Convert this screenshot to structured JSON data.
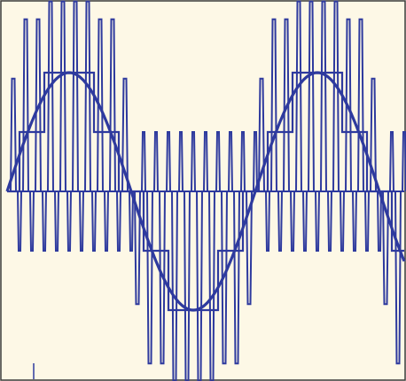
{
  "figure": {
    "description_none": "",
    "colors": {
      "background": "#fdf8e6",
      "frame": "#3a3a3a",
      "trace": "#2e3a9e"
    },
    "waveform": {
      "pulses_per_cycle": 20,
      "levels": [
        -1,
        -0.5,
        0,
        0.5,
        1
      ],
      "spike_height": 1.6,
      "fundamental_amplitude": 1,
      "cycles_shown": 1.6
    }
  }
}
